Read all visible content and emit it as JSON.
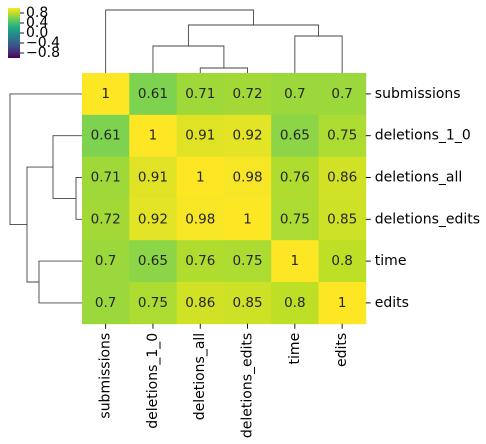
{
  "chart_data": {
    "type": "heatmap",
    "rows": [
      "submissions",
      "deletions_1_0",
      "deletions_all",
      "deletions_edits",
      "time",
      "edits"
    ],
    "columns": [
      "submissions",
      "deletions_1_0",
      "deletions_all",
      "deletions_edits",
      "time",
      "edits"
    ],
    "values": [
      [
        1,
        0.61,
        0.71,
        0.72,
        0.7,
        0.7
      ],
      [
        0.61,
        1,
        0.91,
        0.92,
        0.65,
        0.75
      ],
      [
        0.71,
        0.91,
        1,
        0.98,
        0.76,
        0.86
      ],
      [
        0.72,
        0.92,
        0.98,
        1,
        0.75,
        0.85
      ],
      [
        0.7,
        0.65,
        0.76,
        0.75,
        1,
        0.8
      ],
      [
        0.7,
        0.75,
        0.86,
        0.85,
        0.8,
        1
      ]
    ],
    "value_labels": [
      [
        "1",
        "0.61",
        "0.71",
        "0.72",
        "0.7",
        "0.7"
      ],
      [
        "0.61",
        "1",
        "0.91",
        "0.92",
        "0.65",
        "0.75"
      ],
      [
        "0.71",
        "0.91",
        "1",
        "0.98",
        "0.76",
        "0.86"
      ],
      [
        "0.72",
        "0.92",
        "0.98",
        "1",
        "0.75",
        "0.85"
      ],
      [
        "0.7",
        "0.65",
        "0.76",
        "0.75",
        "1",
        "0.8"
      ],
      [
        "0.7",
        "0.75",
        "0.86",
        "0.85",
        "0.8",
        "1"
      ]
    ],
    "colormap": "viridis",
    "vmin": -1,
    "vmax": 1,
    "colorbar": {
      "ticks": [
        0.8,
        0.4,
        0.0,
        -0.4,
        -0.8
      ],
      "tick_labels": [
        "0.8",
        "0.4",
        "0.0",
        "−0.4",
        "−0.8"
      ],
      "placement": "top-left"
    },
    "row_dendrogram": "left",
    "col_dendrogram": "top",
    "title": "",
    "xlabel": "",
    "ylabel": ""
  }
}
